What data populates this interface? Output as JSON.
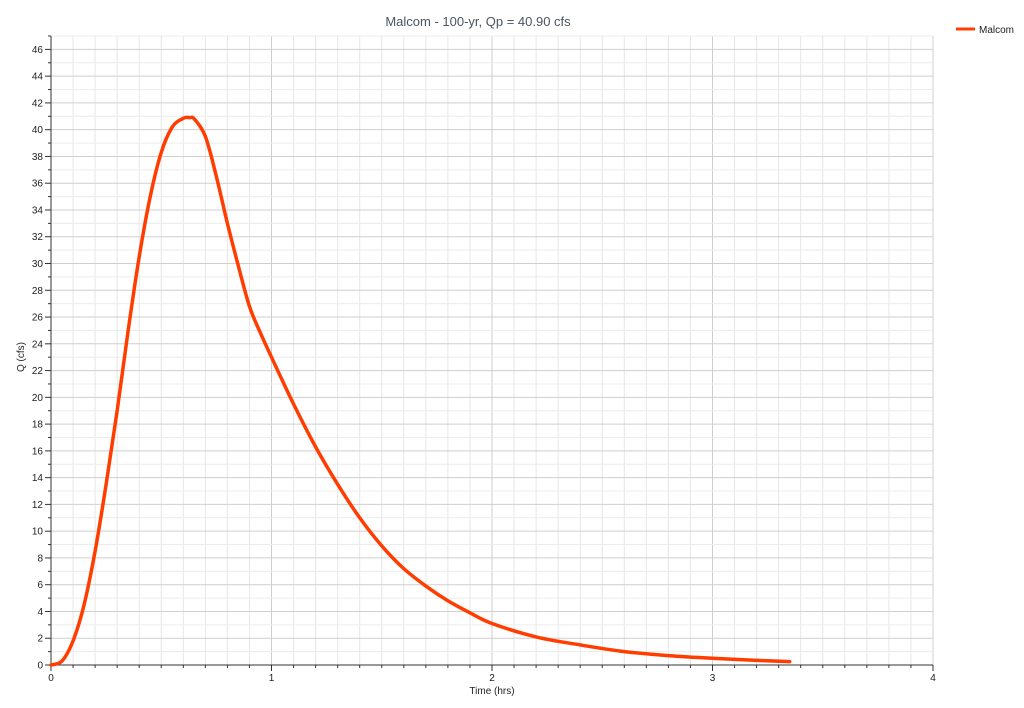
{
  "chart_data": {
    "type": "line",
    "title": "Malcom - 100-yr, Qp = 40.90 cfs",
    "xlabel": "Time (hrs)",
    "ylabel": "Q (cfs)",
    "xlim": [
      0,
      4
    ],
    "ylim": [
      0,
      47
    ],
    "x_ticks": [
      0,
      1,
      2,
      3,
      4
    ],
    "y_ticks": [
      0,
      2,
      4,
      6,
      8,
      10,
      12,
      14,
      16,
      18,
      20,
      22,
      24,
      26,
      28,
      30,
      32,
      34,
      36,
      38,
      40,
      42,
      44,
      46
    ],
    "grid": true,
    "legend_position": "top-right",
    "series": [
      {
        "name": "Malcom",
        "color": "#ff3d00",
        "x": [
          0,
          0.05,
          0.1,
          0.15,
          0.2,
          0.25,
          0.3,
          0.35,
          0.4,
          0.45,
          0.5,
          0.55,
          0.6,
          0.63,
          0.65,
          0.7,
          0.75,
          0.8,
          0.85,
          0.9,
          0.95,
          1.0,
          1.1,
          1.2,
          1.3,
          1.4,
          1.5,
          1.6,
          1.7,
          1.8,
          1.9,
          2.0,
          2.2,
          2.4,
          2.6,
          2.8,
          3.0,
          3.2,
          3.35
        ],
        "y": [
          0,
          0.3,
          1.8,
          4.5,
          8.5,
          13.5,
          19.0,
          25.0,
          30.5,
          35.0,
          38.3,
          40.2,
          40.85,
          40.9,
          40.8,
          39.5,
          36.5,
          33.0,
          29.8,
          26.8,
          24.8,
          23.0,
          19.5,
          16.3,
          13.5,
          11.0,
          8.9,
          7.2,
          5.9,
          4.8,
          3.9,
          3.1,
          2.1,
          1.5,
          1.0,
          0.7,
          0.5,
          0.35,
          0.25
        ]
      }
    ]
  }
}
